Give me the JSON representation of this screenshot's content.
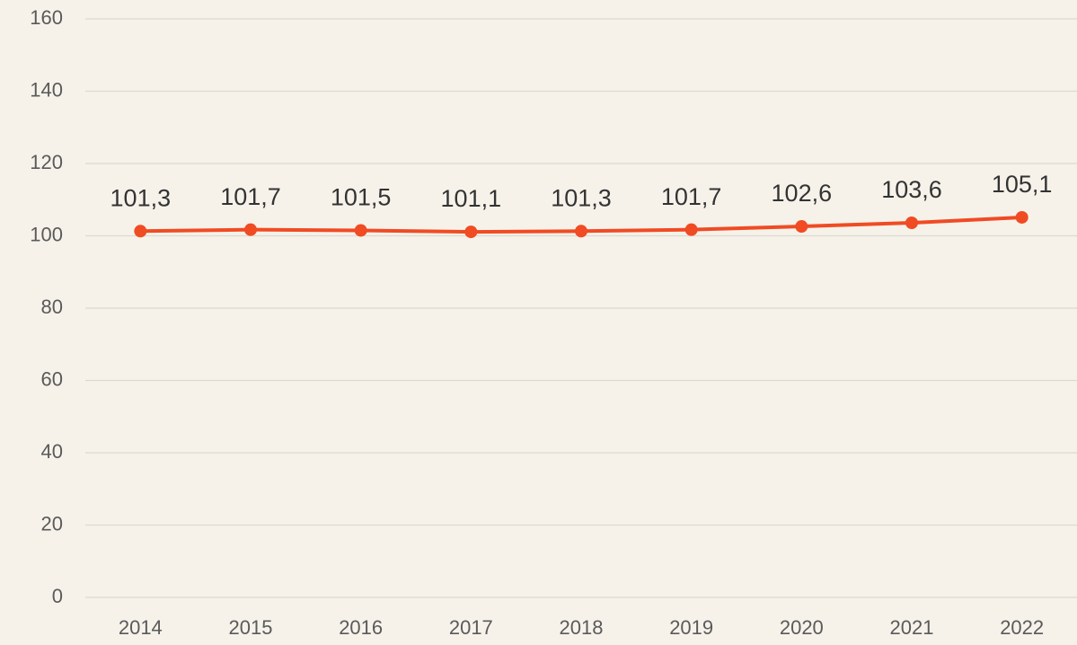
{
  "chart_data": {
    "type": "line",
    "categories": [
      "2014",
      "2015",
      "2016",
      "2017",
      "2018",
      "2019",
      "2020",
      "2021",
      "2022"
    ],
    "series": [
      {
        "name": null,
        "color": "#f04b23",
        "values": [
          101.3,
          101.7,
          101.5,
          101.1,
          101.3,
          101.7,
          102.6,
          103.6,
          105.1
        ],
        "value_labels": [
          "101,3",
          "101,7",
          "101,5",
          "101,1",
          "101,3",
          "101,7",
          "102,6",
          "103,6",
          "105,1"
        ]
      }
    ],
    "ylim": [
      0,
      160
    ],
    "yticks": [
      0,
      20,
      40,
      60,
      80,
      100,
      120,
      140,
      160
    ],
    "grid": true
  }
}
